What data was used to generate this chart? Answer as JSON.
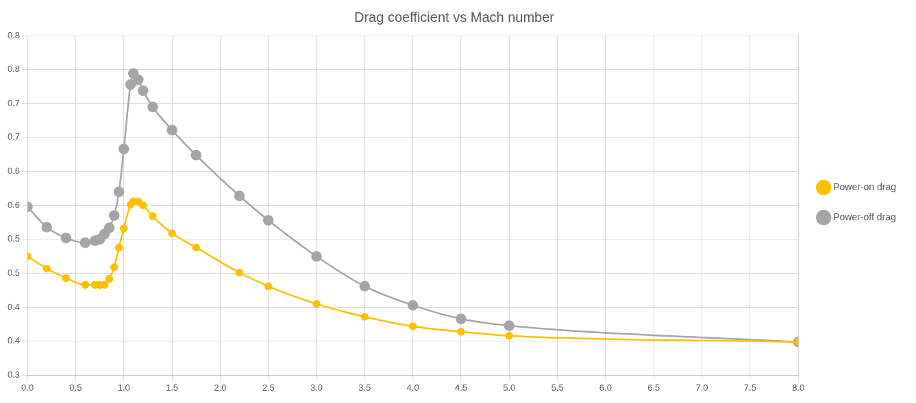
{
  "chart_data": {
    "type": "line",
    "title": "Drag coefficient vs Mach number",
    "x": [
      0,
      0.2,
      0.4,
      0.6,
      0.7,
      0.75,
      0.8,
      0.85,
      0.9,
      0.95,
      1.0,
      1.07,
      1.1,
      1.15,
      1.2,
      1.3,
      1.5,
      1.75,
      2.2,
      2.5,
      3.0,
      3.5,
      4.0,
      4.5,
      5.0,
      8.0
    ],
    "series": [
      {
        "name": "Power-off drag",
        "color": "#a5a5a5",
        "values": [
          0.548,
          0.518,
          0.502,
          0.495,
          0.498,
          0.5,
          0.508,
          0.517,
          0.535,
          0.57,
          0.633,
          0.728,
          0.744,
          0.735,
          0.719,
          0.695,
          0.661,
          0.624,
          0.564,
          0.528,
          0.475,
          0.431,
          0.403,
          0.383,
          0.373,
          0.349
        ]
      },
      {
        "name": "Power-on drag",
        "color": "#ffc000",
        "values": [
          0.475,
          0.457,
          0.443,
          0.433,
          0.433,
          0.433,
          0.433,
          0.442,
          0.459,
          0.488,
          0.516,
          0.551,
          0.556,
          0.556,
          0.55,
          0.534,
          0.509,
          0.488,
          0.451,
          0.431,
          0.405,
          0.386,
          0.372,
          0.364,
          0.358,
          0.349
        ]
      }
    ],
    "xlim": [
      0,
      8
    ],
    "xticks": [
      {
        "value": 0,
        "label": "0.0"
      },
      0.5,
      {
        "value": 1,
        "label": "1.0"
      },
      1.5,
      {
        "value": 2,
        "label": "2.0"
      },
      2.5,
      {
        "value": 3,
        "label": "3.0"
      },
      3.5,
      {
        "value": 4,
        "label": "4.0"
      },
      4.5,
      {
        "value": 5,
        "label": "5.0"
      },
      5.5,
      {
        "value": 6,
        "label": "6.0"
      },
      6.5,
      {
        "value": 7,
        "label": "7.0"
      },
      7.5,
      {
        "value": 8,
        "label": "8.0"
      }
    ],
    "ylim": [
      0.3,
      0.8
    ],
    "yticks": [
      0.3,
      {
        "value": 0.35,
        "label": "0.4"
      },
      0.4,
      {
        "value": 0.45,
        "label": "0.5"
      },
      0.5,
      {
        "value": 0.55,
        "label": "0.6"
      },
      0.6,
      {
        "value": 0.65,
        "label": "0.7"
      },
      0.7,
      {
        "value": 0.75,
        "label": "0.8"
      },
      0.8
    ],
    "grid": true,
    "legend": "right",
    "marker": "circle",
    "line_style": "solid"
  }
}
